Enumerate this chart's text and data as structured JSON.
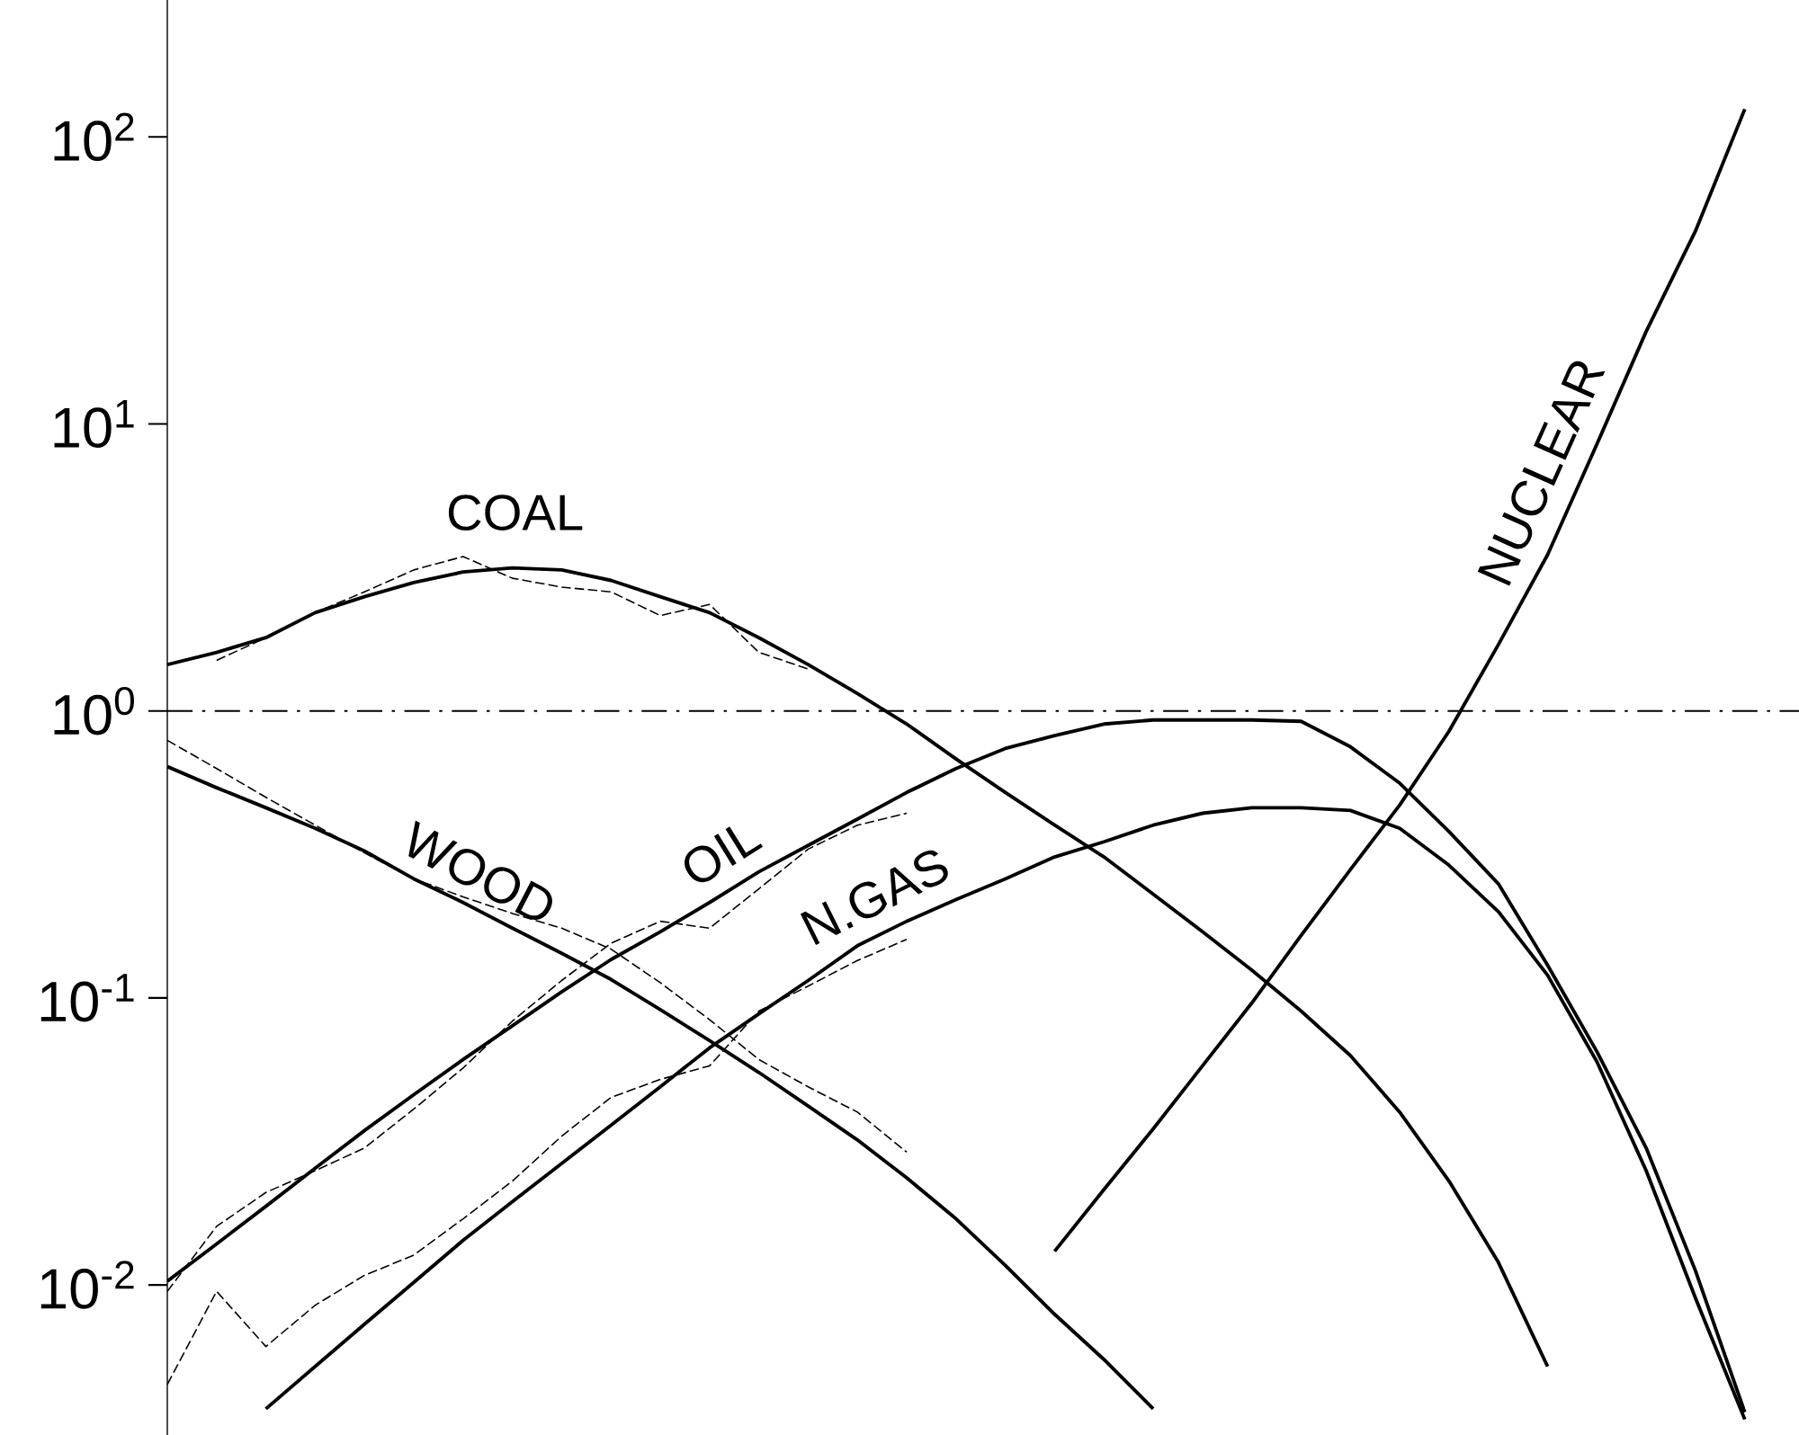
{
  "chart_data": {
    "type": "line",
    "log": "y",
    "marker": "none",
    "tick_labels": "y",
    "categories": [
      null,
      null,
      null,
      null,
      null,
      null,
      null,
      null,
      null,
      null,
      null,
      null,
      null,
      null,
      null,
      null,
      null,
      null,
      null,
      null,
      null,
      null,
      null,
      null,
      null,
      null,
      null,
      null,
      null,
      null,
      null,
      null,
      null,
      null
    ],
    "ylim": [
      0.003,
      300
    ],
    "ref_lines": [
      {
        "axis": "y",
        "value": 1,
        "line_style": "dashed"
      }
    ],
    "yticks": [
      {
        "value": 0.01,
        "label": "10$^{-2}$"
      },
      {
        "value": 0.1,
        "label": "10$^{-1}$"
      },
      {
        "value": 1,
        "label": "10$^{0}$"
      },
      {
        "value": 10,
        "label": "10$^{1}$"
      },
      {
        "value": 100,
        "label": "10$^{2}$"
      }
    ],
    "series": [
      {
        "name": "COAL",
        "color": "#000000",
        "line_style": "solid",
        "values": [
          1.45,
          1.6,
          1.8,
          2.2,
          2.5,
          2.8,
          3.05,
          3.15,
          3.1,
          2.85,
          2.5,
          2.2,
          1.8,
          1.45,
          1.15,
          0.9,
          0.68,
          0.52,
          0.4,
          0.31,
          0.23,
          0.17,
          0.125,
          0.09,
          0.063,
          0.04,
          0.023,
          0.012,
          0.0052,
          null,
          null,
          null,
          null,
          null
        ]
      },
      {
        "name": "WOOD",
        "color": "#000000",
        "line_style": "solid",
        "values": [
          0.64,
          0.54,
          0.46,
          0.39,
          0.325,
          0.26,
          0.215,
          0.175,
          0.143,
          0.116,
          0.091,
          0.071,
          0.055,
          0.042,
          0.032,
          0.0236,
          0.017,
          0.0117,
          0.0079,
          0.0055,
          0.0037,
          null,
          null,
          null,
          null,
          null,
          null,
          null,
          null,
          null,
          null,
          null,
          null,
          null
        ]
      },
      {
        "name": "OIL",
        "color": "#000000",
        "line_style": "solid",
        "values": [
          0.0103,
          0.0139,
          0.0188,
          0.0255,
          0.0345,
          0.046,
          0.061,
          0.08,
          0.105,
          0.136,
          0.17,
          0.215,
          0.275,
          0.34,
          0.42,
          0.52,
          0.63,
          0.74,
          0.82,
          0.9,
          0.93,
          0.93,
          0.93,
          0.92,
          0.75,
          0.56,
          0.38,
          0.25,
          0.13,
          0.065,
          0.03,
          0.0112,
          0.0036,
          null
        ]
      },
      {
        "name": "N.GAS",
        "color": "#000000",
        "line_style": "solid",
        "values": [
          null,
          null,
          0.0037,
          0.0052,
          0.0073,
          0.0102,
          0.0143,
          0.0195,
          0.0265,
          0.036,
          0.049,
          0.067,
          0.088,
          0.115,
          0.152,
          0.185,
          0.22,
          0.26,
          0.31,
          0.35,
          0.4,
          0.44,
          0.46,
          0.46,
          0.45,
          0.39,
          0.29,
          0.2,
          0.12,
          0.06,
          0.025,
          0.009,
          0.0034,
          null
        ]
      },
      {
        "name": "NUCLEAR",
        "color": "#000000",
        "line_style": "solid",
        "values": [
          null,
          null,
          null,
          null,
          null,
          null,
          null,
          null,
          null,
          null,
          null,
          null,
          null,
          null,
          null,
          null,
          null,
          null,
          0.0131,
          0.0215,
          0.035,
          0.058,
          0.096,
          0.165,
          0.28,
          0.47,
          0.85,
          1.7,
          3.5,
          8.5,
          21,
          47,
          125,
          null
        ]
      },
      {
        "color": "#000000",
        "line_style": "dashed",
        "values": [
          null,
          1.5,
          1.8,
          2.2,
          2.6,
          3.1,
          3.45,
          2.9,
          2.7,
          2.6,
          2.15,
          2.35,
          1.6,
          1.4,
          null,
          null,
          null,
          null,
          null,
          null,
          null,
          null,
          null,
          null,
          null,
          null,
          null,
          null,
          null,
          null,
          null,
          null,
          null,
          null
        ]
      },
      {
        "color": "#000000",
        "line_style": "dashed",
        "values": [
          0.79,
          0.63,
          0.5,
          0.4,
          0.32,
          0.26,
          0.225,
          0.197,
          0.175,
          0.148,
          0.113,
          0.084,
          0.061,
          0.049,
          0.04,
          0.029,
          null,
          null,
          null,
          null,
          null,
          null,
          null,
          null,
          null,
          null,
          null,
          null,
          null,
          null,
          null,
          null,
          null,
          null
        ]
      },
      {
        "color": "#000000",
        "line_style": "dashed",
        "values": [
          0.0095,
          0.016,
          0.021,
          0.025,
          0.03,
          0.041,
          0.057,
          0.083,
          0.115,
          0.155,
          0.185,
          0.175,
          0.24,
          0.33,
          0.4,
          0.44,
          null,
          null,
          null,
          null,
          null,
          null,
          null,
          null,
          null,
          null,
          null,
          null,
          null,
          null,
          null,
          null,
          null,
          null
        ]
      },
      {
        "color": "#000000",
        "line_style": "dashed",
        "values": [
          0.0045,
          0.0095,
          0.0061,
          0.0085,
          0.0108,
          0.0127,
          0.017,
          0.023,
          0.033,
          0.045,
          0.052,
          0.058,
          0.09,
          0.11,
          0.135,
          0.16,
          null,
          null,
          null,
          null,
          null,
          null,
          null,
          null,
          null,
          null,
          null,
          null,
          null,
          null,
          null,
          null,
          null,
          null
        ]
      }
    ]
  }
}
